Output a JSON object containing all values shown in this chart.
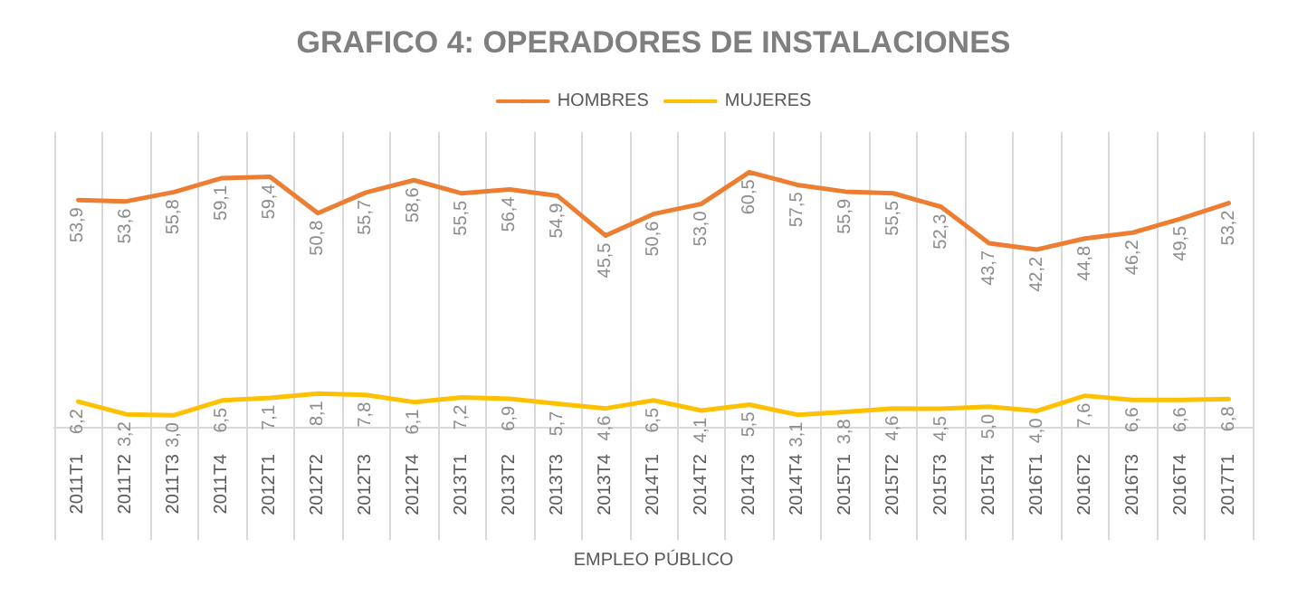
{
  "chart_data": {
    "type": "line",
    "title": "GRAFICO 4: OPERADORES DE INSTALACIONES",
    "xlabel": "EMPLEO PÚBLICO",
    "categories": [
      "2011T1",
      "2011T2",
      "2011T3",
      "2011T4",
      "2012T1",
      "2012T2",
      "2012T3",
      "2012T4",
      "2013T1",
      "2013T2",
      "2013T3",
      "2013T4",
      "2014T1",
      "2014T2",
      "2014T3",
      "2014T4",
      "2015T1",
      "2015T2",
      "2015T3",
      "2015T4",
      "2016T1",
      "2016T2",
      "2016T3",
      "2016T4",
      "2017T1"
    ],
    "series": [
      {
        "name": "HOMBRES",
        "color": "#ed7d31",
        "values": [
          53.9,
          53.6,
          55.8,
          59.1,
          59.4,
          50.8,
          55.7,
          58.6,
          55.5,
          56.4,
          54.9,
          45.5,
          50.6,
          53.0,
          60.5,
          57.5,
          55.9,
          55.5,
          52.3,
          43.7,
          42.2,
          44.8,
          46.2,
          49.5,
          53.2
        ],
        "value_labels": [
          "53,9",
          "53,6",
          "55,8",
          "59,1",
          "59,4",
          "50,8",
          "55,7",
          "58,6",
          "55,5",
          "56,4",
          "54,9",
          "45,5",
          "50,6",
          "53,0",
          "60,5",
          "57,5",
          "55,9",
          "55,5",
          "52,3",
          "43,7",
          "42,2",
          "44,8",
          "46,2",
          "49,5",
          "53,2"
        ]
      },
      {
        "name": "MUJERES",
        "color": "#ffc000",
        "values": [
          6.2,
          3.2,
          3.0,
          6.5,
          7.1,
          8.1,
          7.8,
          6.1,
          7.2,
          6.9,
          5.7,
          4.6,
          6.5,
          4.1,
          5.5,
          3.1,
          3.8,
          4.6,
          4.5,
          5.0,
          4.0,
          7.6,
          6.6,
          6.6,
          6.8
        ],
        "value_labels": [
          "6,2",
          "3,2",
          "3,0",
          "6,5",
          "7,1",
          "8,1",
          "7,8",
          "6,1",
          "7,2",
          "6,9",
          "5,7",
          "4,6",
          "6,5",
          "4,1",
          "5,5",
          "3,1",
          "3,8",
          "4,6",
          "4,5",
          "5,0",
          "4,0",
          "7,6",
          "6,6",
          "6,6",
          "6,8"
        ]
      }
    ],
    "grid": "x",
    "legend": "top",
    "marker": "none",
    "line_style": "solid",
    "tick_labels": "x"
  }
}
